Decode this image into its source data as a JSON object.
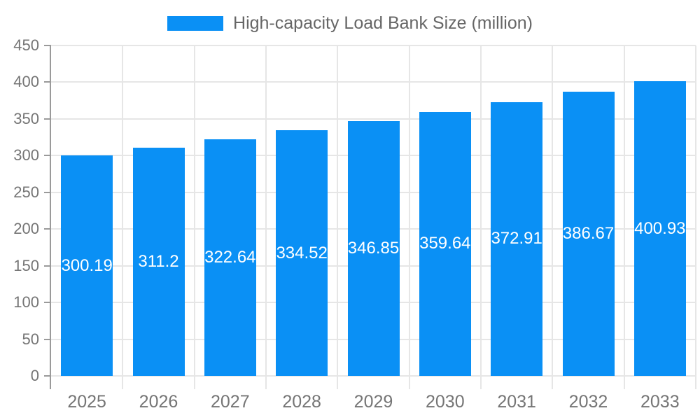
{
  "chart_data": {
    "type": "bar",
    "title": "High-capacity Load Bank Size (million)",
    "categories": [
      "2025",
      "2026",
      "2027",
      "2028",
      "2029",
      "2030",
      "2031",
      "2032",
      "2033"
    ],
    "values": [
      300.19,
      311.2,
      322.64,
      334.52,
      346.85,
      359.64,
      372.91,
      386.67,
      400.93
    ],
    "value_labels": [
      "300.19",
      "311.2",
      "322.64",
      "334.52",
      "346.85",
      "359.64",
      "372.91",
      "386.67",
      "400.93"
    ],
    "xlabel": "",
    "ylabel": "",
    "ylim": [
      0,
      450
    ],
    "ytick_step": 50,
    "ytick_labels": [
      "0",
      "50",
      "100",
      "150",
      "200",
      "250",
      "300",
      "350",
      "400",
      "450"
    ],
    "grid": true,
    "legend_position": "top",
    "colors": {
      "bar": "#0a90f5",
      "grid": "#e6e6e6",
      "axis": "#9a9a9a",
      "tick_text": "#757575",
      "legend_text": "#666666",
      "value_text": "#ffffff",
      "background": "#ffffff"
    }
  }
}
